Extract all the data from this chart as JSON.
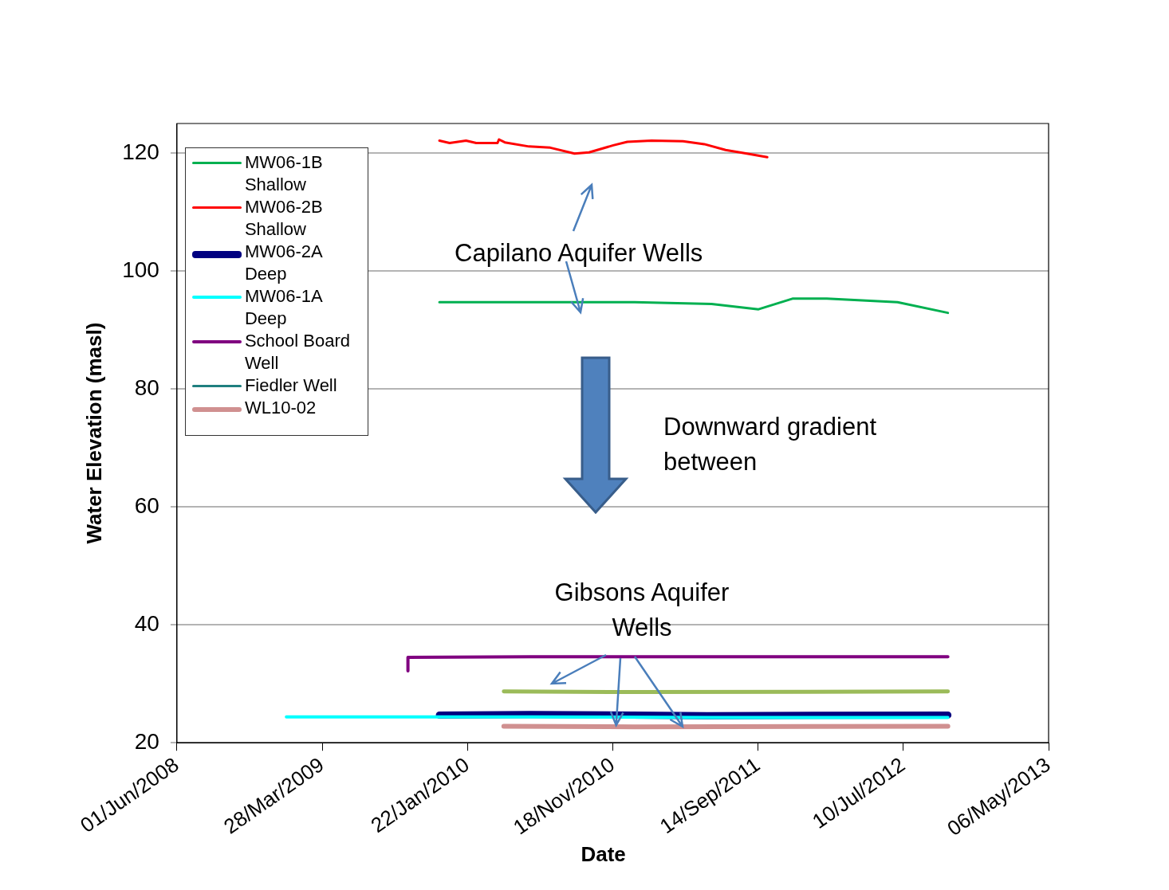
{
  "chart_data": {
    "type": "line",
    "xlabel": "Date",
    "ylabel": "Water Elevation (masl)",
    "xlim": [
      "2008-06-01",
      "2013-05-06"
    ],
    "xticks": [
      {
        "value": "2008-06-01",
        "label": "01/Jun/2008"
      },
      {
        "value": "2009-03-28",
        "label": "28/Mar/2009"
      },
      {
        "value": "2010-01-22",
        "label": "22/Jan/2010"
      },
      {
        "value": "2010-11-18",
        "label": "18/Nov/2010"
      },
      {
        "value": "2011-09-14",
        "label": "14/Sep/2011"
      },
      {
        "value": "2012-07-10",
        "label": "10/Jul/2012"
      },
      {
        "value": "2013-05-06",
        "label": "06/May/2013"
      }
    ],
    "ylim": [
      20,
      125
    ],
    "yticks": [
      20,
      40,
      60,
      80,
      100,
      120
    ],
    "grid": "y",
    "legend": "top left",
    "marker": "none",
    "line_style": "solid",
    "annotations": [
      "Capilano Aquifer Wells",
      "Downward gradient between",
      {
        "text": "Gibsons Aquifer Wells",
        "x": "2010-11-25",
        "y": 23
      }
    ],
    "series": [
      {
        "name": "MW06-1B Shallow",
        "color": "#00b050",
        "x": [
          "2009-11-25",
          "2010-05-29",
          "2010-09-21",
          "2011-01-02",
          "2011-06-10",
          "2011-09-15",
          "2011-11-24",
          "2012-02-03",
          "2012-04-16",
          "2012-06-28",
          "2012-10-10"
        ],
        "values": [
          94.7,
          94.7,
          94.7,
          94.7,
          94.4,
          93.5,
          95.3,
          95.3,
          95.0,
          94.7,
          92.9
        ]
      },
      {
        "name": "MW06-2B Shallow",
        "color": "#ff0000",
        "x": [
          "2009-11-25",
          "2009-12-16",
          "2010-01-19",
          "2010-02-09",
          "2010-03-25",
          "2010-03-28",
          "2010-04-09",
          "2010-05-29",
          "2010-07-12",
          "2010-08-31",
          "2010-09-30",
          "2010-11-19",
          "2010-12-18",
          "2011-02-06",
          "2011-04-12",
          "2011-05-26",
          "2011-07-09",
          "2011-08-22",
          "2011-10-03"
        ],
        "values": [
          122.1,
          121.7,
          122.1,
          121.7,
          121.7,
          122.3,
          121.8,
          121.1,
          120.9,
          119.9,
          120.1,
          121.3,
          121.9,
          122.1,
          122.0,
          121.5,
          120.5,
          119.9,
          119.3
        ]
      },
      {
        "name": "MW06-2A Deep",
        "color": "#000080",
        "x": [
          "2009-11-25",
          "2010-06-01",
          "2011-06-01",
          "2012-10-10"
        ],
        "values": [
          24.7,
          24.8,
          24.6,
          24.7
        ]
      },
      {
        "name": "MW06-1A Deep",
        "color": "#00ffff",
        "x": [
          "2009-01-13",
          "2010-06-01",
          "2011-06-01",
          "2012-10-10"
        ],
        "values": [
          24.4,
          24.4,
          24.3,
          24.3
        ]
      },
      {
        "name": "School Board Well",
        "color": "#800080",
        "x": [
          "2009-09-21",
          "2009-09-21",
          "2010-06-01",
          "2011-06-01",
          "2012-10-10"
        ],
        "values": [
          32.2,
          34.5,
          34.6,
          34.6,
          34.6
        ]
      },
      {
        "name": "Fiedler Well",
        "color": "#1f7f7f"
      },
      {
        "name": "WL10-02",
        "color": "#d09090",
        "x": [
          "2010-04-07",
          "2011-01-01",
          "2012-10-10"
        ],
        "values": [
          22.8,
          22.7,
          22.8
        ]
      },
      {
        "color": "#9bbb59",
        "x": [
          "2010-04-07",
          "2011-01-01",
          "2012-10-10"
        ],
        "values": [
          28.7,
          28.6,
          28.7
        ]
      }
    ]
  }
}
